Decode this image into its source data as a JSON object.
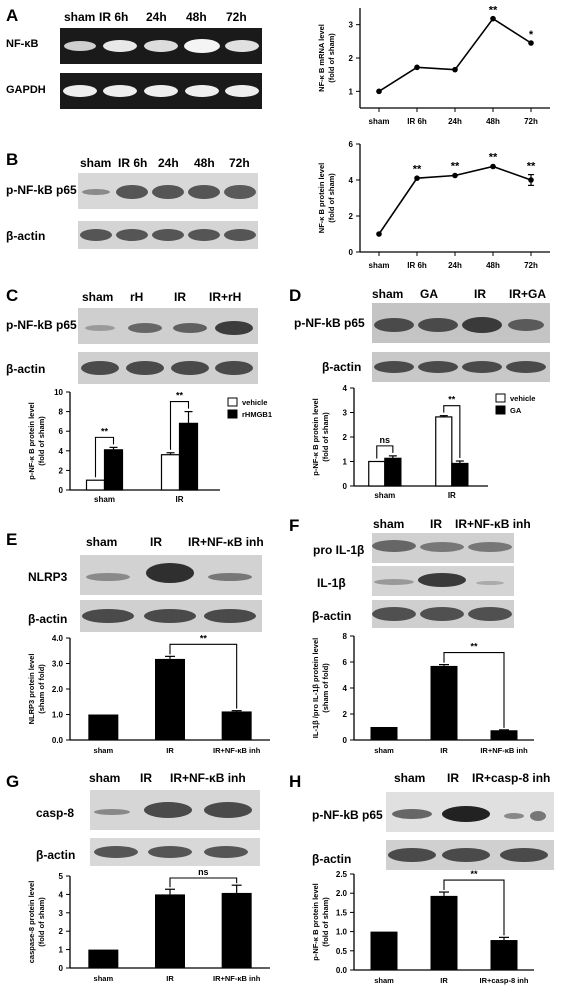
{
  "panels": {
    "A": {
      "letter": "A",
      "lanes": [
        "sham",
        "IR 6h",
        "24h",
        "48h",
        "72h"
      ],
      "rows": [
        "NF-κB",
        "GAPDH"
      ]
    },
    "B": {
      "letter": "B",
      "lanes": [
        "sham",
        "IR 6h",
        "24h",
        "48h",
        "72h"
      ],
      "rows": [
        "p-NF-kB p65",
        "β-actin"
      ]
    },
    "C": {
      "letter": "C",
      "lanes": [
        "sham",
        "rH",
        "IR",
        "IR+rH"
      ],
      "rows": [
        "p-NF-kB p65",
        "β-actin"
      ]
    },
    "D": {
      "letter": "D",
      "lanes": [
        "sham",
        "GA",
        "IR",
        "IR+GA"
      ],
      "rows": [
        "p-NF-kB p65",
        "β-actin"
      ]
    },
    "E": {
      "letter": "E",
      "lanes": [
        "sham",
        "IR",
        "IR+NF-κB inh"
      ],
      "rows": [
        "NLRP3",
        "β-actin"
      ]
    },
    "F": {
      "letter": "F",
      "lanes": [
        "sham",
        "IR",
        "IR+NF-κB inh"
      ],
      "rows": [
        "pro IL-1β",
        "IL-1β",
        "β-actin"
      ]
    },
    "G": {
      "letter": "G",
      "lanes": [
        "sham",
        "IR",
        "IR+NF-κB inh"
      ],
      "rows": [
        "casp-8",
        "β-actin"
      ]
    },
    "H": {
      "letter": "H",
      "lanes": [
        "sham",
        "IR",
        "IR+casp-8 inh"
      ],
      "rows": [
        "p-NF-kB p65",
        "β-actin"
      ]
    }
  },
  "chart_data": [
    {
      "id": "A",
      "type": "line",
      "categories": [
        "sham",
        "IR 6h",
        "24h",
        "48h",
        "72h"
      ],
      "series": [
        {
          "values": [
            1.0,
            1.72,
            1.65,
            3.18,
            2.45
          ],
          "errors": [
            0,
            0,
            0,
            0,
            0
          ]
        }
      ],
      "ylabel": "NF-κ B mRNA level\n(fold of sham)",
      "ylim": [
        0.5,
        3.5
      ],
      "yticks": [
        1,
        2,
        3
      ],
      "annotations": [
        {
          "index": 3,
          "text": "**"
        },
        {
          "index": 4,
          "text": "*"
        }
      ]
    },
    {
      "id": "B",
      "type": "line",
      "categories": [
        "sham",
        "IR 6h",
        "24h",
        "48h",
        "72h"
      ],
      "series": [
        {
          "values": [
            1.0,
            4.1,
            4.25,
            4.75,
            4.0
          ],
          "errors": [
            0,
            0.05,
            0.05,
            0.05,
            0.3
          ]
        }
      ],
      "ylabel": "NF-κ B protein level\n(fold of sham)",
      "ylim": [
        0,
        6
      ],
      "yticks": [
        0,
        2,
        4,
        6
      ],
      "annotations": [
        {
          "index": 1,
          "text": "**"
        },
        {
          "index": 2,
          "text": "**"
        },
        {
          "index": 3,
          "text": "**"
        },
        {
          "index": 4,
          "text": "**"
        }
      ]
    },
    {
      "id": "C",
      "type": "bar",
      "groups": [
        "sham",
        "IR"
      ],
      "series": [
        {
          "name": "vehicle",
          "color": "#ffffff",
          "values": [
            1.0,
            3.6
          ],
          "errors": [
            0,
            0.2
          ]
        },
        {
          "name": "rHMGB1",
          "color": "#000000",
          "values": [
            4.1,
            6.8
          ],
          "errors": [
            0.25,
            1.2
          ]
        }
      ],
      "ylabel": "p-NF-κ B protein level\n(fold of sham)",
      "ylim": [
        0,
        10
      ],
      "yticks": [
        0,
        2,
        4,
        6,
        8,
        10
      ],
      "legend": "top-right",
      "brackets": [
        {
          "from": [
            0,
            0
          ],
          "to": [
            0,
            1
          ],
          "text": "**"
        },
        {
          "from": [
            1,
            0
          ],
          "to": [
            1,
            1
          ],
          "text": "**"
        }
      ]
    },
    {
      "id": "D",
      "type": "bar",
      "groups": [
        "sham",
        "IR"
      ],
      "series": [
        {
          "name": "vehicle",
          "color": "#ffffff",
          "values": [
            1.0,
            2.82
          ],
          "errors": [
            0,
            0.05
          ]
        },
        {
          "name": "GA",
          "color": "#000000",
          "values": [
            1.13,
            0.92
          ],
          "errors": [
            0.1,
            0.1
          ]
        }
      ],
      "ylabel": "p-NF-κ B protein level\n(fold of sham)",
      "ylim": [
        0,
        4
      ],
      "yticks": [
        0,
        1,
        2,
        3,
        4
      ],
      "legend": "top-right",
      "brackets": [
        {
          "from": [
            0,
            0
          ],
          "to": [
            0,
            1
          ],
          "text": "ns"
        },
        {
          "from": [
            1,
            0
          ],
          "to": [
            1,
            1
          ],
          "text": "**"
        }
      ]
    },
    {
      "id": "E",
      "type": "bar",
      "categories": [
        "sham",
        "IR",
        "IR+NF-κB inh"
      ],
      "values": [
        1.0,
        3.18,
        1.12
      ],
      "errors": [
        0,
        0.1,
        0.03
      ],
      "ylabel": "NLRP3 protein level\n(sham of fold)",
      "ylim": [
        0,
        4
      ],
      "yticks": [
        0.0,
        1.0,
        2.0,
        3.0,
        4.0
      ],
      "brackets": [
        {
          "from": 1,
          "to": 2,
          "text": "**"
        }
      ]
    },
    {
      "id": "F",
      "type": "bar",
      "categories": [
        "sham",
        "IR",
        "IR+NF-κB inh"
      ],
      "values": [
        1.0,
        5.7,
        0.75
      ],
      "errors": [
        0,
        0.1,
        0.03
      ],
      "ylabel": "IL-1β /pro IL-1β  protein level\n(sham of fold)",
      "ylim": [
        0,
        8
      ],
      "yticks": [
        0,
        2,
        4,
        6,
        8
      ],
      "brackets": [
        {
          "from": 1,
          "to": 2,
          "text": "**"
        }
      ]
    },
    {
      "id": "G",
      "type": "bar",
      "categories": [
        "sham",
        "IR",
        "IR+NF-κB inh"
      ],
      "values": [
        1.0,
        4.0,
        4.08
      ],
      "errors": [
        0,
        0.28,
        0.42
      ],
      "ylabel": "caspase-8 protein level\n(fold of sham)",
      "ylim": [
        0,
        5
      ],
      "yticks": [
        0,
        1,
        2,
        3,
        4,
        5
      ],
      "brackets": [
        {
          "from": 1,
          "to": 2,
          "text": "ns"
        }
      ]
    },
    {
      "id": "H",
      "type": "bar",
      "categories": [
        "sham",
        "IR",
        "IR+casp-8 inh"
      ],
      "values": [
        1.0,
        1.93,
        0.78
      ],
      "errors": [
        0,
        0.1,
        0.07
      ],
      "ylabel": "p-NF-κ B protein level\n(fold of sham)",
      "ylim": [
        0,
        2.5
      ],
      "yticks": [
        0.0,
        0.5,
        1.0,
        1.5,
        2.0,
        2.5
      ],
      "brackets": [
        {
          "from": 1,
          "to": 2,
          "text": "**"
        }
      ]
    }
  ]
}
